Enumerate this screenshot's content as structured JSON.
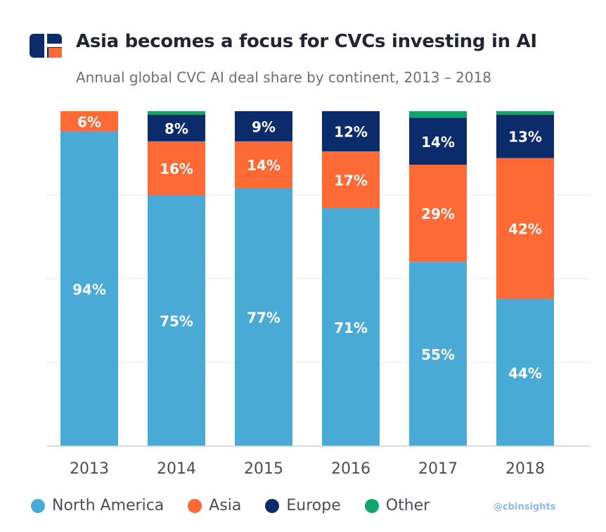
{
  "header": {
    "title": "Asia becomes a focus for CVCs investing in AI",
    "subtitle": "Annual global CVC AI deal share by continent, 2013 – 2018",
    "logo_icon": "cbinsights-logo-icon"
  },
  "watermark": "@cbinsights",
  "colors": {
    "north_america": "#4aaad6",
    "asia": "#fe6a35",
    "europe": "#0c2b6b",
    "other": "#12a56b",
    "logo_dark": "#0c2b6b",
    "logo_accent": "#fe6a35"
  },
  "legend": [
    {
      "label": "North America",
      "color": "#4aaad6"
    },
    {
      "label": "Asia",
      "color": "#fe6a35"
    },
    {
      "label": "Europe",
      "color": "#0c2b6b"
    },
    {
      "label": "Other",
      "color": "#12a56b"
    }
  ],
  "chart_data": {
    "type": "bar",
    "stacked": true,
    "title": "Asia becomes a focus for CVCs investing in AI",
    "subtitle": "Annual global CVC AI deal share by continent, 2013 – 2018",
    "categories": [
      "2013",
      "2014",
      "2015",
      "2016",
      "2017",
      "2018"
    ],
    "ylim": [
      0,
      100
    ],
    "grid": true,
    "legend_position": "bottom",
    "series": [
      {
        "name": "North America",
        "color": "#4aaad6",
        "values": [
          94,
          75,
          77,
          71,
          55,
          44
        ],
        "labels": [
          "94%",
          "75%",
          "77%",
          "71%",
          "55%",
          "44%"
        ]
      },
      {
        "name": "Asia",
        "color": "#fe6a35",
        "values": [
          6,
          16,
          14,
          17,
          29,
          42
        ],
        "labels": [
          "6%",
          "16%",
          "14%",
          "17%",
          "29%",
          "42%"
        ]
      },
      {
        "name": "Europe",
        "color": "#0c2b6b",
        "values": [
          0,
          8,
          9,
          12,
          14,
          13
        ],
        "labels": [
          "",
          "8%",
          "9%",
          "12%",
          "14%",
          "13%"
        ]
      },
      {
        "name": "Other",
        "color": "#12a56b",
        "values": [
          0,
          1,
          0,
          0,
          2,
          1
        ],
        "labels": [
          "",
          "",
          "",
          "",
          "",
          ""
        ]
      }
    ]
  }
}
